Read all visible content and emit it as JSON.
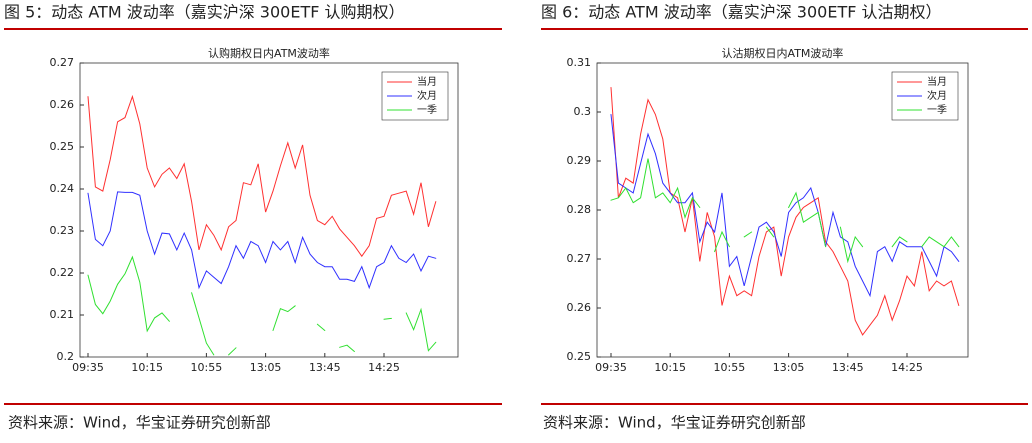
{
  "figures": [
    {
      "caption": "图 5：动态 ATM 波动率（嘉实沪深 300ETF 认购期权）",
      "source": "资料来源：Wind，华宝证券研究创新部"
    },
    {
      "caption": "图 6：动态 ATM 波动率（嘉实沪深 300ETF 认沽期权）",
      "source": "资料来源：Wind，华宝证券研究创新部"
    }
  ],
  "chart_data": [
    {
      "type": "line",
      "title": "认购期权日内ATM波动率",
      "categories": [
        "09:35",
        null,
        null,
        null,
        null,
        null,
        null,
        null,
        "10:15",
        null,
        null,
        null,
        null,
        null,
        null,
        null,
        "10:55",
        null,
        null,
        null,
        null,
        null,
        null,
        null,
        "13:05",
        null,
        null,
        null,
        null,
        null,
        null,
        null,
        "13:45",
        null,
        null,
        null,
        null,
        null,
        null,
        null,
        "14:25",
        null,
        null,
        null,
        null,
        null,
        null,
        null
      ],
      "ylim": [
        0.2,
        0.27
      ],
      "yticks": [
        0.2,
        0.21,
        0.22,
        0.23,
        0.24,
        0.25,
        0.26,
        0.27
      ],
      "grid": false,
      "legend": "northeast",
      "series": [
        {
          "name": "当月",
          "color": "#ff3030",
          "values": [
            0.262,
            0.2405,
            0.2395,
            0.247,
            0.256,
            0.257,
            0.262,
            0.2555,
            0.245,
            0.2405,
            0.2435,
            0.245,
            0.2425,
            0.246,
            0.237,
            0.2255,
            0.2315,
            0.229,
            0.2255,
            0.231,
            0.2325,
            0.2415,
            0.241,
            0.246,
            0.2345,
            0.2395,
            0.2455,
            0.251,
            0.245,
            0.2505,
            0.2385,
            0.2325,
            0.2315,
            0.2335,
            0.2305,
            0.2285,
            0.2265,
            0.224,
            0.2265,
            0.233,
            0.2335,
            0.2385,
            0.239,
            0.2395,
            0.234,
            0.2415,
            0.231,
            0.237
          ]
        },
        {
          "name": "次月",
          "color": "#3030ff",
          "values": [
            0.239,
            0.228,
            0.2265,
            0.23,
            0.2393,
            0.2392,
            0.2392,
            0.2385,
            0.23,
            0.2245,
            0.2295,
            0.2293,
            0.2255,
            0.2295,
            0.2255,
            0.2165,
            0.2205,
            0.219,
            0.2175,
            0.2215,
            0.2265,
            0.2235,
            0.2275,
            0.2265,
            0.2225,
            0.2275,
            0.2255,
            0.2275,
            0.2225,
            0.2285,
            0.2245,
            0.2225,
            0.2215,
            0.2215,
            0.2185,
            0.2185,
            0.218,
            0.2215,
            0.2165,
            0.2215,
            0.2225,
            0.2265,
            0.2235,
            0.2225,
            0.2245,
            0.2205,
            0.224,
            0.2235
          ]
        },
        {
          "name": "一季",
          "color": "#30e030",
          "values": [
            0.2195,
            0.2125,
            0.2103,
            0.2133,
            0.2173,
            0.2198,
            0.2238,
            0.2178,
            0.2062,
            0.2093,
            0.2105,
            0.2085,
            null,
            null,
            0.2153,
            0.2093,
            0.2033,
            0.2005,
            null,
            0.2005,
            0.2022,
            null,
            null,
            null,
            null,
            0.2063,
            0.2115,
            0.2108,
            0.2122,
            null,
            null,
            0.2078,
            0.2063,
            null,
            0.2023,
            0.2028,
            0.2013,
            null,
            null,
            null,
            0.209,
            0.2092,
            null,
            0.2105,
            0.2065,
            0.2113,
            0.2015,
            0.2035
          ]
        }
      ]
    },
    {
      "type": "line",
      "title": "认沽期权日内ATM波动率",
      "categories": [
        "09:35",
        null,
        null,
        null,
        null,
        null,
        null,
        null,
        "10:15",
        null,
        null,
        null,
        null,
        null,
        null,
        null,
        "10:55",
        null,
        null,
        null,
        null,
        null,
        null,
        null,
        "13:05",
        null,
        null,
        null,
        null,
        null,
        null,
        null,
        "13:45",
        null,
        null,
        null,
        null,
        null,
        null,
        null,
        "14:25",
        null,
        null,
        null,
        null,
        null,
        null,
        null
      ],
      "ylim": [
        0.25,
        0.31
      ],
      "yticks": [
        0.25,
        0.26,
        0.27,
        0.28,
        0.29,
        0.3,
        0.31
      ],
      "grid": false,
      "legend": "northeast",
      "series": [
        {
          "name": "当月",
          "color": "#ff3030",
          "values": [
            0.305,
            0.2825,
            0.2865,
            0.2855,
            0.2955,
            0.3025,
            0.2995,
            0.2945,
            0.2835,
            0.2825,
            0.2755,
            0.2825,
            0.2695,
            0.2795,
            0.2745,
            0.2605,
            0.2665,
            0.2625,
            0.2635,
            0.2625,
            0.2705,
            0.2755,
            0.2765,
            0.2665,
            0.2745,
            0.2785,
            0.2805,
            0.2815,
            0.2825,
            0.2735,
            0.2715,
            0.2685,
            0.2655,
            0.2575,
            0.2545,
            0.2565,
            0.2585,
            0.2625,
            0.2575,
            0.2615,
            0.2665,
            0.2645,
            0.2715,
            0.2635,
            0.2655,
            0.2645,
            0.2655,
            0.2605
          ]
        },
        {
          "name": "次月",
          "color": "#3030ff",
          "values": [
            0.2995,
            0.2855,
            0.2845,
            0.2835,
            0.2895,
            0.2955,
            0.2915,
            0.2855,
            0.2835,
            0.2815,
            0.2815,
            0.2835,
            0.2735,
            0.2775,
            0.2755,
            0.2835,
            0.2685,
            0.2705,
            0.2645,
            0.2705,
            0.2765,
            0.2775,
            0.2755,
            0.2705,
            0.2795,
            0.2815,
            0.2825,
            0.2845,
            0.2795,
            0.2725,
            0.2795,
            0.2745,
            0.2735,
            0.2685,
            0.2655,
            0.2625,
            0.2715,
            0.2725,
            0.2695,
            0.2735,
            0.2725,
            0.2725,
            0.2725,
            0.2695,
            0.2665,
            0.2725,
            0.2715,
            0.2695
          ]
        },
        {
          "name": "一季",
          "color": "#30e030",
          "values": [
            0.282,
            0.2825,
            0.2845,
            0.2815,
            0.2825,
            0.2905,
            0.2825,
            0.2835,
            0.2815,
            0.2845,
            0.2785,
            0.2825,
            0.2805,
            null,
            0.2715,
            0.2755,
            0.2725,
            null,
            0.2745,
            0.2755,
            null,
            0.2765,
            0.2745,
            null,
            0.2805,
            0.2835,
            0.2775,
            0.2785,
            0.2795,
            0.2725,
            null,
            0.2765,
            0.2695,
            0.2745,
            0.2725,
            null,
            null,
            null,
            0.2725,
            0.2745,
            0.2735,
            null,
            0.2725,
            0.2745,
            0.2735,
            0.2725,
            0.2745,
            0.2725
          ]
        }
      ]
    }
  ]
}
